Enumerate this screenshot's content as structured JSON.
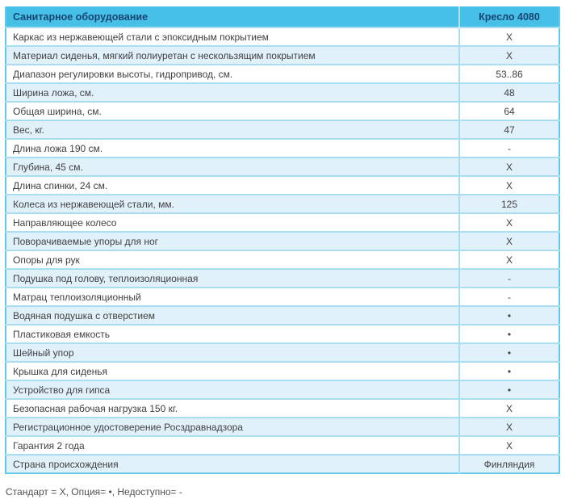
{
  "table": {
    "header": {
      "feature_column": "Санитарное оборудование",
      "product_column": "Кресло 4080"
    },
    "rows": [
      {
        "label": "Каркас из нержавеющей стали с эпоксидным покрытием",
        "value": "X"
      },
      {
        "label": "Материал сиденья, мягкий полиуретан с нескользящим покрытием",
        "value": "X"
      },
      {
        "label": "Диапазон регулировки высоты, гидропривод, см.",
        "value": "53..86"
      },
      {
        "label": "Ширина ложа, см.",
        "value": "48"
      },
      {
        "label": "Общая ширина, см.",
        "value": "64"
      },
      {
        "label": "Вес, кг.",
        "value": "47"
      },
      {
        "label": "Длина ложа 190 см.",
        "value": "-"
      },
      {
        "label": "Глубина, 45 см.",
        "value": "X"
      },
      {
        "label": "Длина спинки, 24 см.",
        "value": "X"
      },
      {
        "label": "Колеса из нержавеющей стали, мм.",
        "value": "125"
      },
      {
        "label": "Направляющее колесо",
        "value": "X"
      },
      {
        "label": "Поворачиваемые упоры для ног",
        "value": "X"
      },
      {
        "label": "Опоры для рук",
        "value": "X"
      },
      {
        "label": "Подушка под голову, теплоизоляционная",
        "value": "-"
      },
      {
        "label": "Матрац теплоизоляционный",
        "value": "-"
      },
      {
        "label": "Водяная подушка с отверстием",
        "value": "•"
      },
      {
        "label": "Пластиковая емкость",
        "value": "•"
      },
      {
        "label": "Шейный упор",
        "value": "•"
      },
      {
        "label": "Крышка для сиденья",
        "value": "•"
      },
      {
        "label": "Устройство для гипса",
        "value": "•"
      },
      {
        "label": "Безопасная рабочая нагрузка 150 кг.",
        "value": "X"
      },
      {
        "label": "Регистрационное удостоверение Росздравнадзора",
        "value": "X"
      },
      {
        "label": "Гарантия 2 года",
        "value": "X"
      },
      {
        "label": "Страна происхождения",
        "value": "Финляндия"
      }
    ],
    "legend": "Стандарт = X, Опция= •, Недоступно= -"
  },
  "colors": {
    "header_bg": "#47c0e8",
    "header_text": "#174472",
    "row_alt_bg": "#e1f1fa",
    "divider": "#a8ddf2",
    "outer_border": "#62c8ec",
    "body_text": "#414042",
    "legend_text": "#4f5052"
  }
}
